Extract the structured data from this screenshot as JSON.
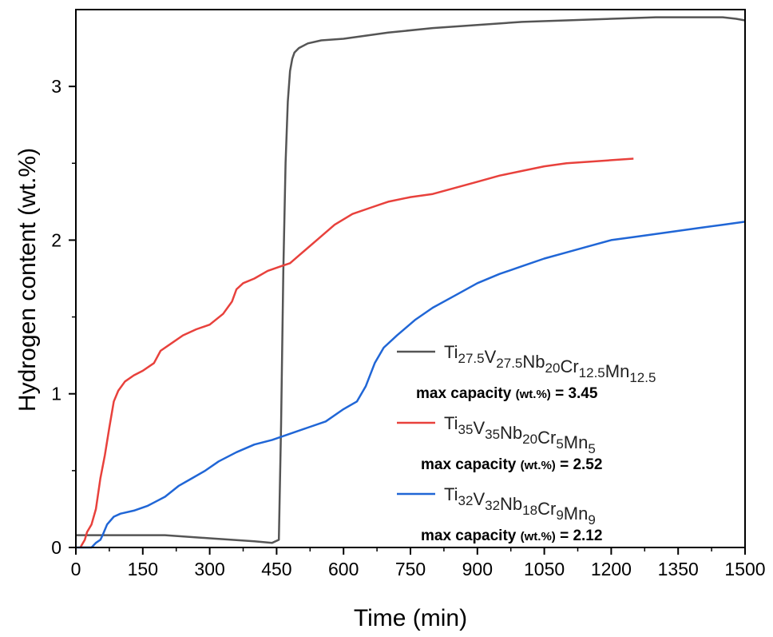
{
  "chart_data": {
    "type": "line",
    "xlabel": "Time (min)",
    "ylabel": "Hydrogen content (wt.%)",
    "xlim": [
      0,
      1500
    ],
    "ylim": [
      0,
      3.5
    ],
    "xticks": [
      "0",
      "150",
      "300",
      "450",
      "600",
      "750",
      "900",
      "1050",
      "1200",
      "1350",
      "1500"
    ],
    "yticks": [
      "0",
      "1",
      "2",
      "3"
    ],
    "grid": false,
    "legend_position": "right",
    "series": [
      {
        "name": "Ti27.5V27.5Nb20Cr12.5Mn12.5",
        "name_parts": [
          [
            "Ti",
            "27.5"
          ],
          [
            "V",
            "27.5"
          ],
          [
            "Nb",
            "20"
          ],
          [
            "Cr",
            "12.5"
          ],
          [
            "Mn",
            "12.5"
          ]
        ],
        "color": "#555555",
        "capacity_label": "max capacity",
        "capacity_unit": "(wt.%)",
        "capacity_value": "= 3.45",
        "x": [
          0,
          100,
          200,
          300,
          400,
          440,
          455,
          460,
          465,
          470,
          475,
          480,
          485,
          490,
          500,
          520,
          550,
          600,
          700,
          800,
          900,
          1000,
          1100,
          1200,
          1300,
          1400,
          1450,
          1480,
          1500
        ],
        "y": [
          0.08,
          0.08,
          0.08,
          0.06,
          0.04,
          0.03,
          0.05,
          0.8,
          1.8,
          2.5,
          2.9,
          3.1,
          3.18,
          3.22,
          3.25,
          3.28,
          3.3,
          3.31,
          3.35,
          3.38,
          3.4,
          3.42,
          3.43,
          3.44,
          3.45,
          3.45,
          3.45,
          3.44,
          3.43
        ]
      },
      {
        "name": "Ti35V35Nb20Cr5Mn5",
        "name_parts": [
          [
            "Ti",
            "35"
          ],
          [
            "V",
            "35"
          ],
          [
            "Nb",
            "20"
          ],
          [
            "Cr",
            "5"
          ],
          [
            "Mn",
            "5"
          ]
        ],
        "color": "#e8413c",
        "capacity_label": "max capacity",
        "capacity_unit": "(wt.%)",
        "capacity_value": "= 2.52",
        "x": [
          10,
          20,
          25,
          35,
          45,
          55,
          65,
          75,
          85,
          95,
          110,
          130,
          150,
          175,
          190,
          210,
          240,
          270,
          300,
          330,
          350,
          360,
          375,
          400,
          430,
          460,
          480,
          500,
          540,
          580,
          620,
          660,
          700,
          750,
          800,
          850,
          900,
          950,
          1000,
          1050,
          1100,
          1150,
          1200,
          1250
        ],
        "y": [
          0.0,
          0.05,
          0.1,
          0.15,
          0.25,
          0.45,
          0.6,
          0.78,
          0.95,
          1.02,
          1.08,
          1.12,
          1.15,
          1.2,
          1.28,
          1.32,
          1.38,
          1.42,
          1.45,
          1.52,
          1.6,
          1.68,
          1.72,
          1.75,
          1.8,
          1.83,
          1.85,
          1.9,
          2.0,
          2.1,
          2.17,
          2.21,
          2.25,
          2.28,
          2.3,
          2.34,
          2.38,
          2.42,
          2.45,
          2.48,
          2.5,
          2.51,
          2.52,
          2.53
        ]
      },
      {
        "name": "Ti32V32Nb18Cr9Mn9",
        "name_parts": [
          [
            "Ti",
            "32"
          ],
          [
            "V",
            "32"
          ],
          [
            "Nb",
            "18"
          ],
          [
            "Cr",
            "9"
          ],
          [
            "Mn",
            "9"
          ]
        ],
        "color": "#2066d6",
        "capacity_label": "max capacity",
        "capacity_unit": "(wt.%)",
        "capacity_value": "= 2.12",
        "x": [
          0,
          20,
          35,
          45,
          55,
          60,
          70,
          85,
          100,
          130,
          160,
          180,
          200,
          230,
          260,
          290,
          320,
          360,
          400,
          440,
          480,
          520,
          560,
          600,
          630,
          650,
          670,
          690,
          720,
          760,
          800,
          850,
          900,
          950,
          1000,
          1050,
          1100,
          1150,
          1200,
          1250,
          1300,
          1350,
          1400,
          1450,
          1500
        ],
        "y": [
          0.0,
          0.0,
          0.0,
          0.03,
          0.05,
          0.08,
          0.15,
          0.2,
          0.22,
          0.24,
          0.27,
          0.3,
          0.33,
          0.4,
          0.45,
          0.5,
          0.56,
          0.62,
          0.67,
          0.7,
          0.74,
          0.78,
          0.82,
          0.9,
          0.95,
          1.05,
          1.2,
          1.3,
          1.38,
          1.48,
          1.56,
          1.64,
          1.72,
          1.78,
          1.83,
          1.88,
          1.92,
          1.96,
          2.0,
          2.02,
          2.04,
          2.06,
          2.08,
          2.1,
          2.12
        ]
      }
    ]
  }
}
